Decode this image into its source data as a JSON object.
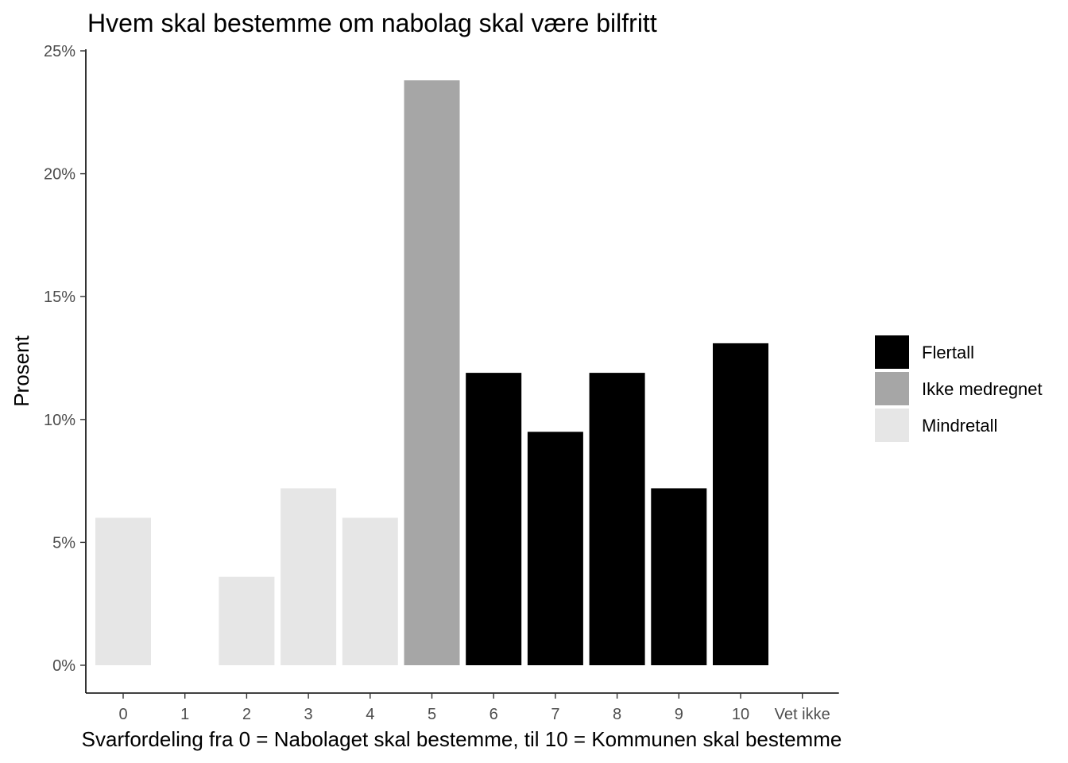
{
  "chart_data": {
    "type": "bar",
    "title": "Hvem skal bestemme om nabolag skal være bilfritt",
    "xlabel": "Svarfordeling fra 0 = Nabolaget skal bestemme, til 10 = Kommunen skal bestemme",
    "ylabel": "Prosent",
    "categories": [
      "0",
      "1",
      "2",
      "3",
      "4",
      "5",
      "6",
      "7",
      "8",
      "9",
      "10",
      "Vet ikke"
    ],
    "values": [
      6.0,
      0,
      3.6,
      7.2,
      6.0,
      23.8,
      11.9,
      9.5,
      11.9,
      7.2,
      13.1,
      0
    ],
    "groups": [
      "Mindretall",
      "Mindretall",
      "Mindretall",
      "Mindretall",
      "Mindretall",
      "Ikke medregnet",
      "Flertall",
      "Flertall",
      "Flertall",
      "Flertall",
      "Flertall",
      "Flertall"
    ],
    "ylim": [
      0,
      25
    ],
    "yticks": [
      0,
      5,
      10,
      15,
      20,
      25
    ],
    "ytick_labels": [
      "0%",
      "5%",
      "10%",
      "15%",
      "20%",
      "25%"
    ],
    "grid": false,
    "legend_position": "right",
    "legend": [
      {
        "name": "Flertall",
        "color": "#000000"
      },
      {
        "name": "Ikke medregnet",
        "color": "#a6a6a6"
      },
      {
        "name": "Mindretall",
        "color": "#e6e6e6"
      }
    ]
  }
}
